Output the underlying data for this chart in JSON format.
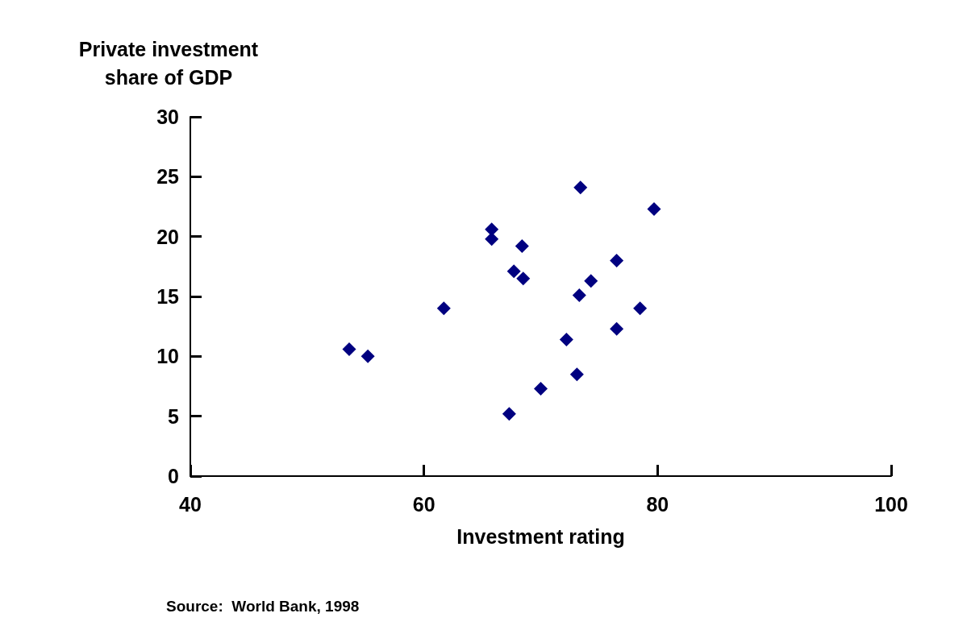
{
  "chart_data": {
    "type": "scatter",
    "ylabel": "Private investment\nshare of GDP",
    "xlabel": "Investment rating",
    "annotations": [
      "Source:  World Bank, 1998"
    ],
    "x": [
      53.6,
      55.2,
      61.7,
      65.8,
      65.8,
      68.4,
      67.7,
      68.5,
      67.3,
      70.0,
      72.2,
      73.1,
      73.3,
      73.4,
      74.3,
      76.5,
      76.5,
      78.5,
      79.7
    ],
    "values": [
      10.6,
      10.0,
      14.0,
      20.6,
      19.8,
      19.2,
      17.1,
      16.5,
      5.2,
      7.3,
      11.4,
      8.5,
      15.1,
      24.1,
      16.3,
      18.0,
      12.3,
      14.0,
      22.3
    ],
    "color": "#000080",
    "marker": "diamond",
    "xlim": [
      40,
      100
    ],
    "xticks": [
      40,
      60,
      80,
      100
    ],
    "ylim": [
      0,
      30
    ],
    "yticks": [
      0,
      5,
      10,
      15,
      20,
      25,
      30
    ],
    "grid": false
  }
}
